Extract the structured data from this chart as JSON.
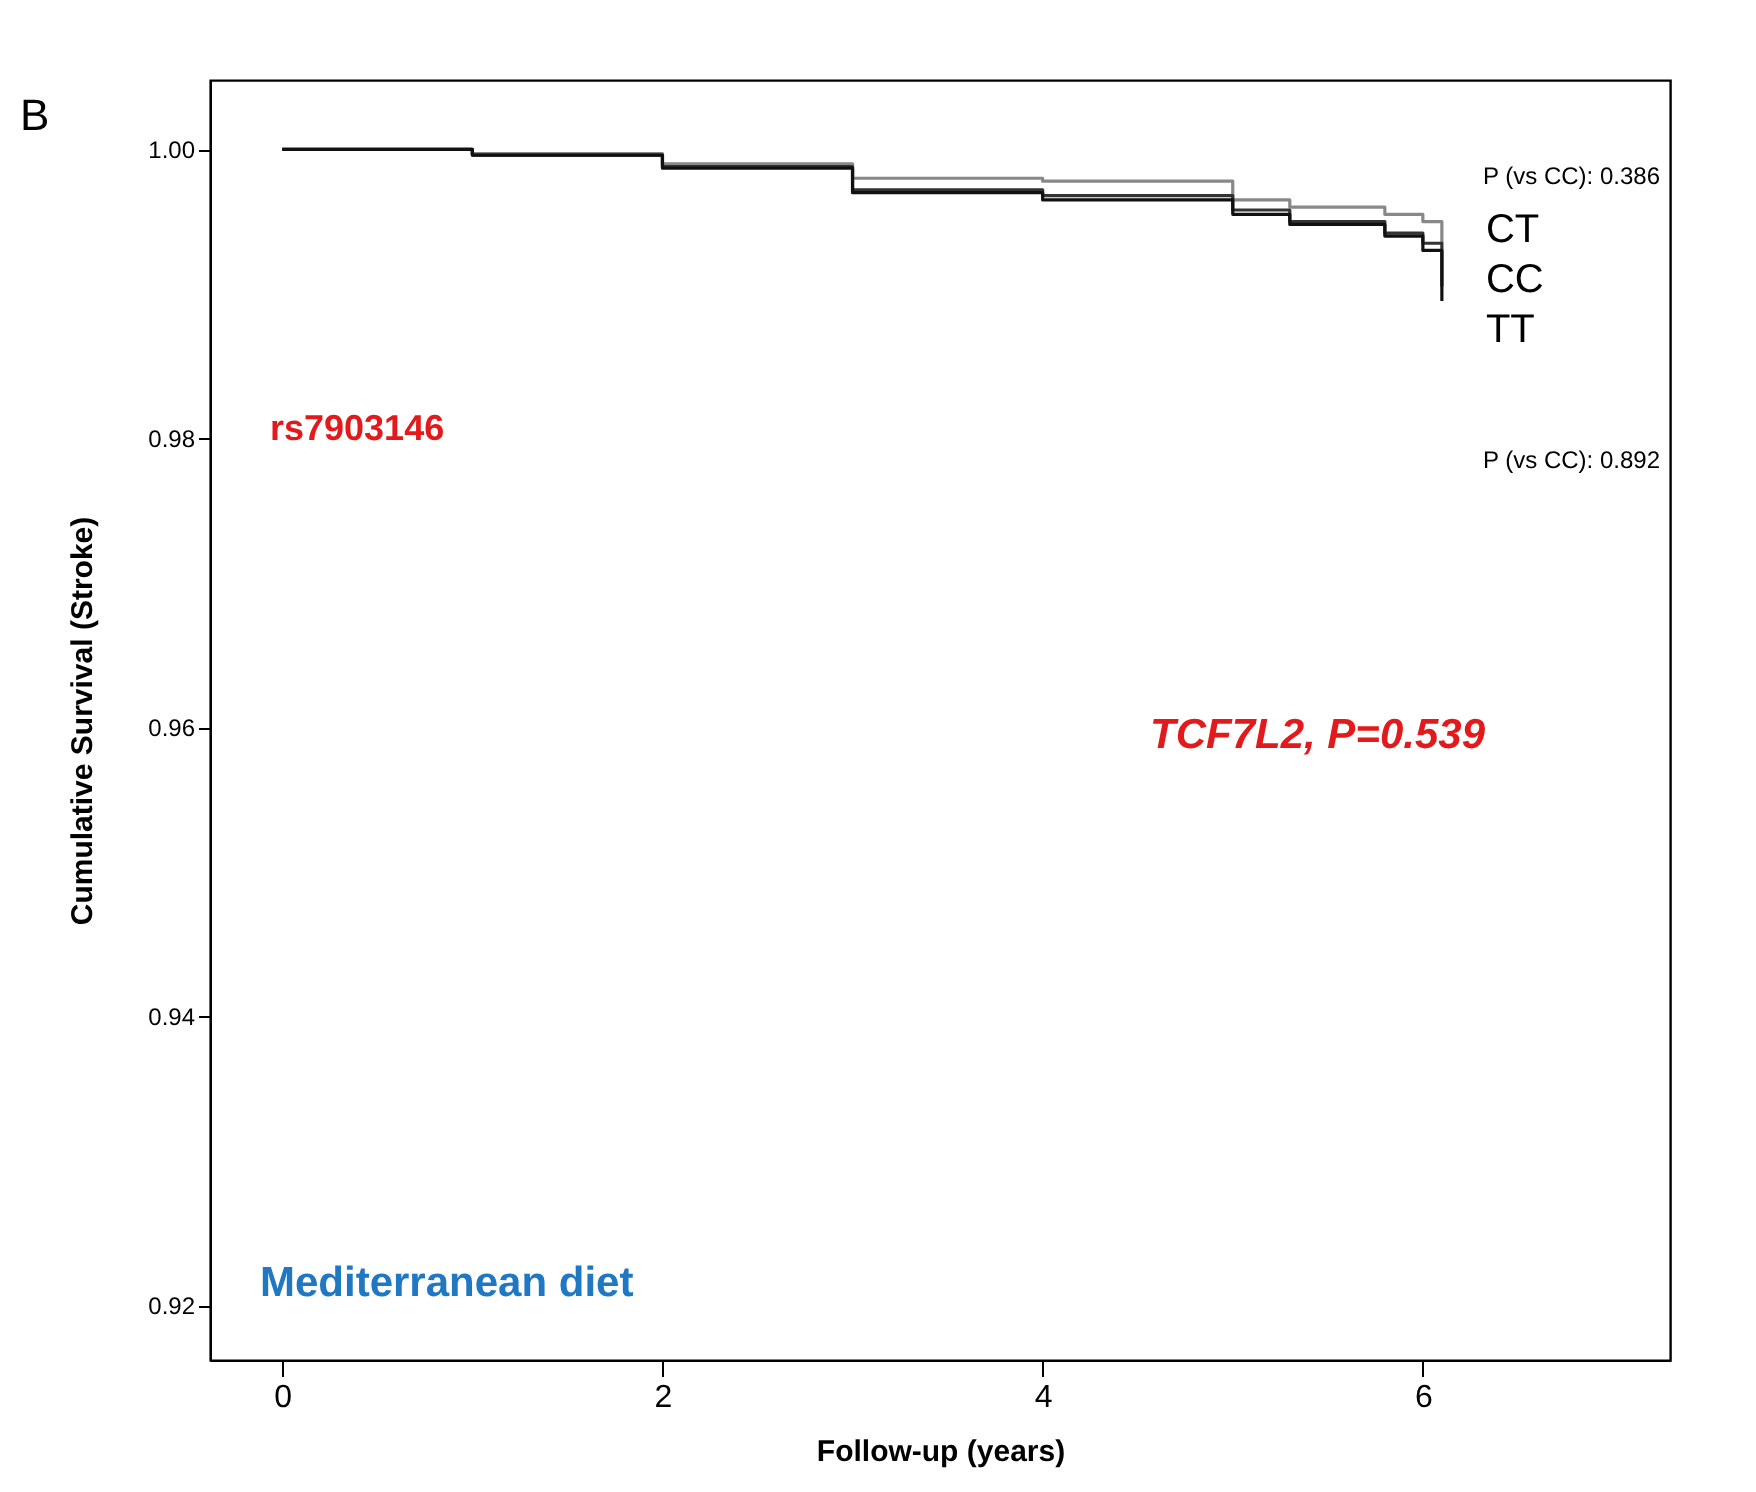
{
  "chart_data": {
    "type": "step",
    "xlabel": "Follow-up (years)",
    "ylabel": "Cumulative Survival (Stroke)",
    "x": [
      0,
      1,
      2,
      3,
      4,
      5,
      5.3,
      5.8,
      6,
      6.1
    ],
    "series": [
      {
        "name": "CT",
        "color": "#888888",
        "values": [
          1.0,
          0.9997,
          0.999,
          0.998,
          0.9978,
          0.9965,
          0.996,
          0.9955,
          0.995,
          0.9935
        ]
      },
      {
        "name": "CC",
        "color": "#333333",
        "values": [
          1.0,
          0.9996,
          0.9988,
          0.9972,
          0.9968,
          0.9958,
          0.995,
          0.9942,
          0.9935,
          0.9905
        ]
      },
      {
        "name": "TT",
        "color": "#111111",
        "values": [
          1.0,
          0.9996,
          0.9987,
          0.997,
          0.9965,
          0.9955,
          0.9948,
          0.994,
          0.993,
          0.9895
        ]
      }
    ],
    "xlim": [
      -0.38,
      7.3
    ],
    "xticks": [
      {
        "value": 0,
        "label": "0"
      },
      {
        "value": 2,
        "label": "2"
      },
      {
        "value": 4,
        "label": "4"
      },
      {
        "value": 6,
        "label": "6"
      }
    ],
    "ylim": [
      0.9162,
      1.0048
    ],
    "yticks": [
      {
        "value": 0.92,
        "label": "0.92"
      },
      {
        "value": 0.94,
        "label": "0.94"
      },
      {
        "value": 0.96,
        "label": "0.96"
      },
      {
        "value": 0.98,
        "label": "0.98"
      },
      {
        "value": 1.0,
        "label": "1.00"
      }
    ],
    "annotations": [
      "B",
      "rs7903146",
      "TCF7L2, P=0.539",
      "Mediterranean diet",
      "P (vs CC): 0.386",
      "P (vs CC): 0.892"
    ],
    "grid": false,
    "marker": "none",
    "line_style": "solid"
  }
}
